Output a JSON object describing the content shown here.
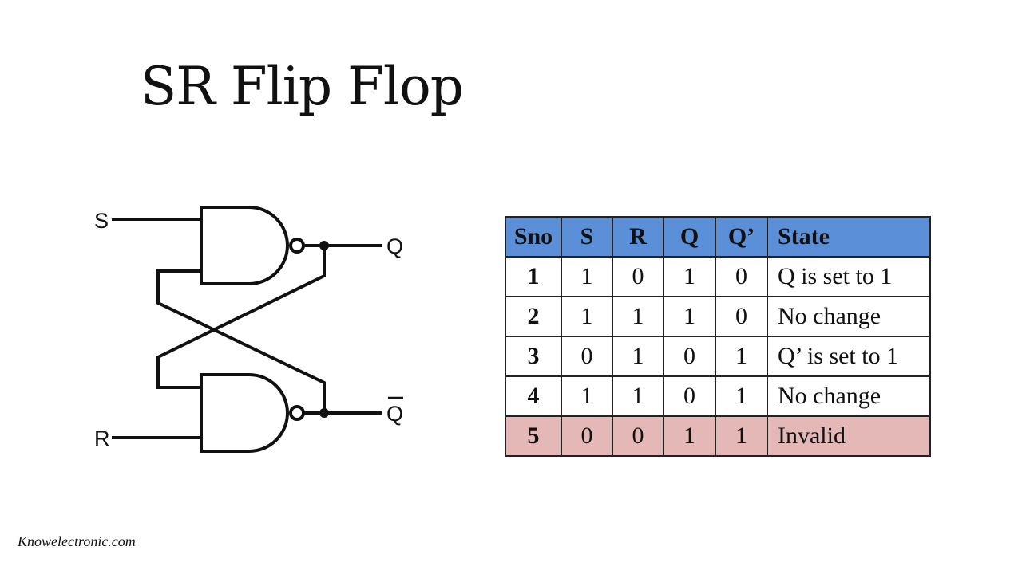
{
  "title": "SR Flip Flop",
  "circuit": {
    "inputs": [
      "S",
      "R"
    ],
    "outputs": [
      "Q",
      "Q"
    ],
    "gate_type": "NAND"
  },
  "truth_table": {
    "headers": [
      "Sno",
      "S",
      "R",
      "Q",
      "Q’",
      "State"
    ],
    "rows": [
      [
        "1",
        "1",
        "0",
        "1",
        "0",
        "Q is set to 1"
      ],
      [
        "2",
        "1",
        "1",
        "1",
        "0",
        "No change"
      ],
      [
        "3",
        "0",
        "1",
        "0",
        "1",
        "Q’ is set to 1"
      ],
      [
        "4",
        "1",
        "1",
        "0",
        "1",
        "No change"
      ],
      [
        "5",
        "0",
        "0",
        "1",
        "1",
        "Invalid"
      ]
    ],
    "colors": {
      "header": "#5b8fd8",
      "invalid_row": "#e5b8b8"
    }
  },
  "footer": "Knowelectronic.com"
}
